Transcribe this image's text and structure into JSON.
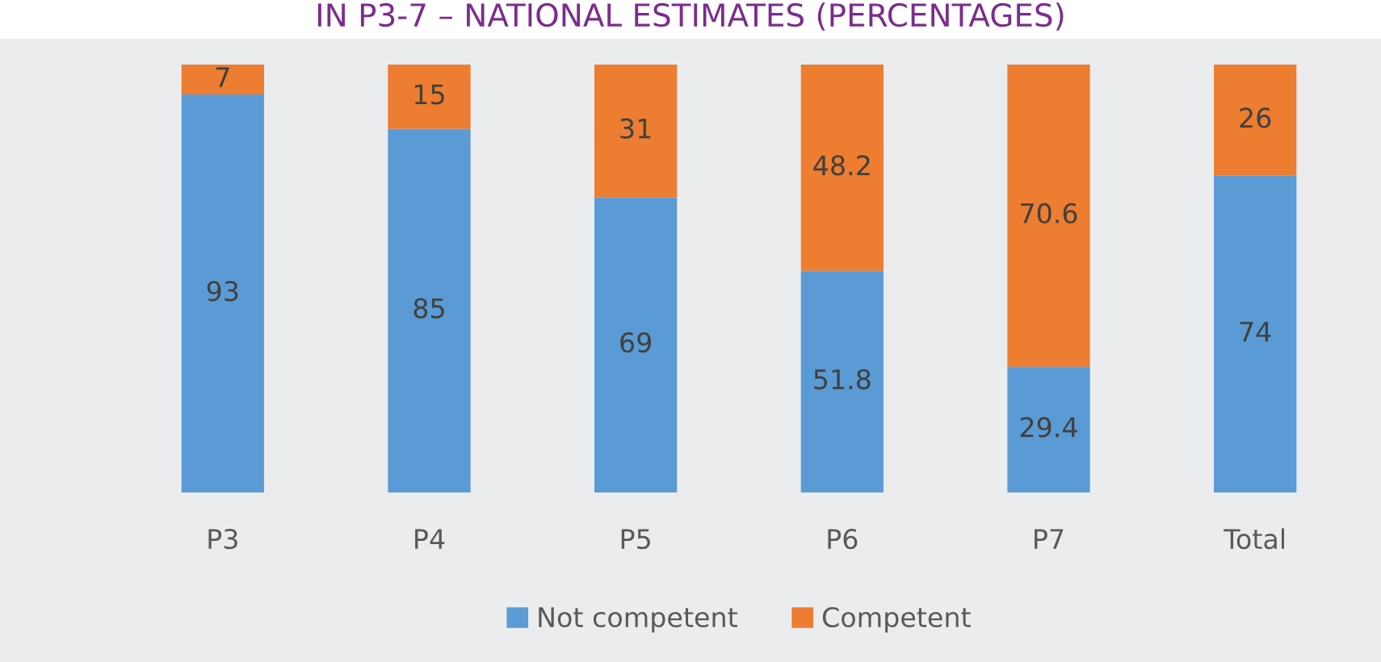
{
  "chart_data": {
    "type": "bar",
    "title": "IN P3-7 – NATIONAL ESTIMATES (PERCENTAGES)",
    "categories": [
      "P3",
      "P4",
      "P5",
      "P6",
      "P7",
      "Total"
    ],
    "series": [
      {
        "name": "Not competent",
        "color": "#5b9bd5",
        "values": [
          93,
          85,
          69,
          51.8,
          29.4,
          74
        ]
      },
      {
        "name": "Competent",
        "color": "#ed7d31",
        "values": [
          7,
          15,
          31,
          48.2,
          70.6,
          26
        ]
      }
    ],
    "stacked": true,
    "ylim": [
      0,
      100
    ],
    "tick_labels": "x",
    "data_labels": true,
    "grid": false,
    "legend": "bottom"
  }
}
